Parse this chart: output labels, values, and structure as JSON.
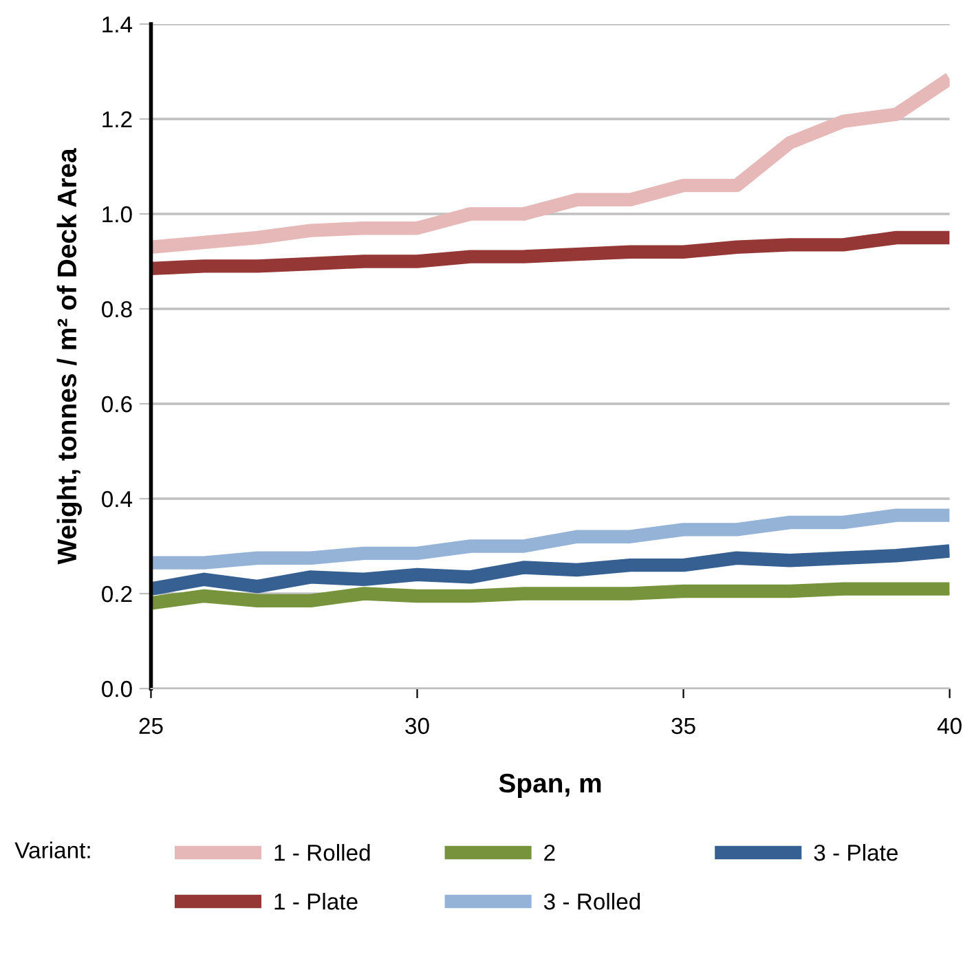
{
  "chart_data": {
    "type": "line",
    "xlabel": "Span, m",
    "ylabel": "Weight, tonnes / m² of Deck Area",
    "legend_title": "Variant:",
    "x": [
      25,
      26,
      27,
      28,
      29,
      30,
      31,
      32,
      33,
      34,
      35,
      36,
      37,
      38,
      39,
      40
    ],
    "series": [
      {
        "name": "1 - Rolled",
        "color": "#e6b8b7",
        "values": [
          0.93,
          0.94,
          0.95,
          0.965,
          0.97,
          0.97,
          1.0,
          1.0,
          1.03,
          1.03,
          1.06,
          1.06,
          1.15,
          1.195,
          1.21,
          1.285
        ]
      },
      {
        "name": "1 - Plate",
        "color": "#953735",
        "values": [
          0.885,
          0.89,
          0.89,
          0.895,
          0.9,
          0.9,
          0.91,
          0.91,
          0.915,
          0.92,
          0.92,
          0.93,
          0.935,
          0.935,
          0.95,
          0.95
        ]
      },
      {
        "name": "2",
        "color": "#77933c",
        "values": [
          0.18,
          0.195,
          0.185,
          0.185,
          0.2,
          0.195,
          0.195,
          0.2,
          0.2,
          0.2,
          0.205,
          0.205,
          0.205,
          0.21,
          0.21,
          0.21
        ]
      },
      {
        "name": "3 - Rolled",
        "color": "#95b3d7",
        "values": [
          0.265,
          0.265,
          0.275,
          0.275,
          0.285,
          0.285,
          0.3,
          0.3,
          0.32,
          0.32,
          0.335,
          0.335,
          0.35,
          0.35,
          0.365,
          0.365
        ]
      },
      {
        "name": "3 - Plate",
        "color": "#376092",
        "values": [
          0.21,
          0.23,
          0.215,
          0.235,
          0.23,
          0.24,
          0.235,
          0.255,
          0.25,
          0.26,
          0.26,
          0.275,
          0.27,
          0.275,
          0.28,
          0.29
        ]
      }
    ],
    "xlim": [
      25,
      40
    ],
    "xticks": [
      25,
      30,
      35,
      40
    ],
    "ylim": [
      0,
      1.4
    ],
    "yticks": [
      {
        "value": 0,
        "label": "0.0"
      },
      {
        "value": 0.2,
        "label": "0.2"
      },
      {
        "value": 0.4,
        "label": "0.4"
      },
      {
        "value": 0.6,
        "label": "0.6"
      },
      {
        "value": 0.8,
        "label": "0.8"
      },
      {
        "value": 1.0,
        "label": "1.0"
      },
      {
        "value": 1.2,
        "label": "1.2"
      },
      {
        "value": 1.4,
        "label": "1.4"
      }
    ],
    "grid": "y",
    "legend": "bottom",
    "marker": "none",
    "line_style": "solid"
  }
}
